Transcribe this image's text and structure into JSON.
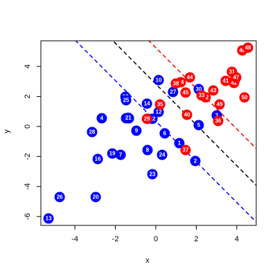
{
  "chart_data": {
    "type": "scatter",
    "x_label": "x",
    "y_label": "y",
    "labels": [
      "1",
      "2",
      "3",
      "4",
      "5",
      "6",
      "7",
      "8",
      "9",
      "10",
      "11",
      "12",
      "13",
      "14",
      "15",
      "16",
      "17",
      "18",
      "19",
      "20",
      "21",
      "22",
      "23",
      "24",
      "25",
      "26",
      "27",
      "28",
      "29",
      "30",
      "31",
      "32",
      "33",
      "34",
      "35",
      "36",
      "37",
      "38",
      "39",
      "40",
      "41",
      "42",
      "43",
      "44",
      "45",
      "46",
      "47",
      "48",
      "49",
      "50"
    ],
    "x": [
      1.16,
      1.95,
      3.01,
      -2.67,
      2.12,
      0.44,
      -1.74,
      -0.41,
      -0.96,
      0.14,
      -1.33,
      0.14,
      -5.3,
      -0.44,
      -0.41,
      -2.87,
      -1.5,
      -1.47,
      -2.15,
      -2.97,
      -1.36,
      -0.17,
      -0.17,
      0.31,
      -1.47,
      -4.75,
      0.85,
      -3.15,
      -0.44,
      2.12,
      3.76,
      2.46,
      2.26,
      1.23,
      0.21,
      3.08,
      1.47,
      0.99,
      3.9,
      1.54,
      3.45,
      3.86,
      2.84,
      1.68,
      1.47,
      4.27,
      3.97,
      4.55,
      3.15,
      4.38
    ],
    "y": [
      -1.11,
      -2.3,
      0.74,
      0.55,
      0.09,
      -0.46,
      -1.89,
      -1.57,
      -0.28,
      3.09,
      0.55,
      0.97,
      -6.13,
      1.52,
      0.51,
      -2.17,
      1.98,
      0.55,
      -1.8,
      -4.7,
      0.58,
      0.51,
      -3.18,
      -1.89,
      1.75,
      -4.7,
      2.3,
      -0.37,
      0.51,
      2.49,
      3.64,
      1.94,
      2.07,
      2.95,
      1.47,
      0.37,
      -1.57,
      2.86,
      3.09,
      0.78,
      3.04,
      2.9,
      2.4,
      3.27,
      2.26,
      5.07,
      3.27,
      5.25,
      1.47,
      1.94
    ],
    "colors": [
      "blue",
      "blue",
      "blue",
      "blue",
      "blue",
      "blue",
      "blue",
      "blue",
      "blue",
      "blue",
      "blue",
      "blue",
      "blue",
      "blue",
      "blue",
      "blue",
      "blue",
      "blue",
      "blue",
      "blue",
      "blue",
      "blue",
      "blue",
      "blue",
      "blue",
      "blue",
      "blue",
      "blue",
      "red",
      "blue",
      "red",
      "red",
      "red",
      "red",
      "red",
      "red",
      "red",
      "red",
      "red",
      "red",
      "red",
      "red",
      "red",
      "red",
      "red",
      "red",
      "red",
      "red",
      "red",
      "red"
    ],
    "ablines": [
      {
        "intercept": 2.83,
        "slope": -1.36,
        "color": "black"
      },
      {
        "intercept": 5.25,
        "slope": -1.355,
        "color": "red"
      },
      {
        "intercept": 0.35,
        "slope": -1.354,
        "color": "blue"
      }
    ],
    "xlim": [
      -5.68,
      4.96
    ],
    "ylim": [
      -6.59,
      5.71
    ],
    "xticks": [
      -4,
      -2,
      0,
      2,
      4
    ],
    "yticks": [
      -6,
      -4,
      -2,
      0,
      2,
      4
    ]
  }
}
